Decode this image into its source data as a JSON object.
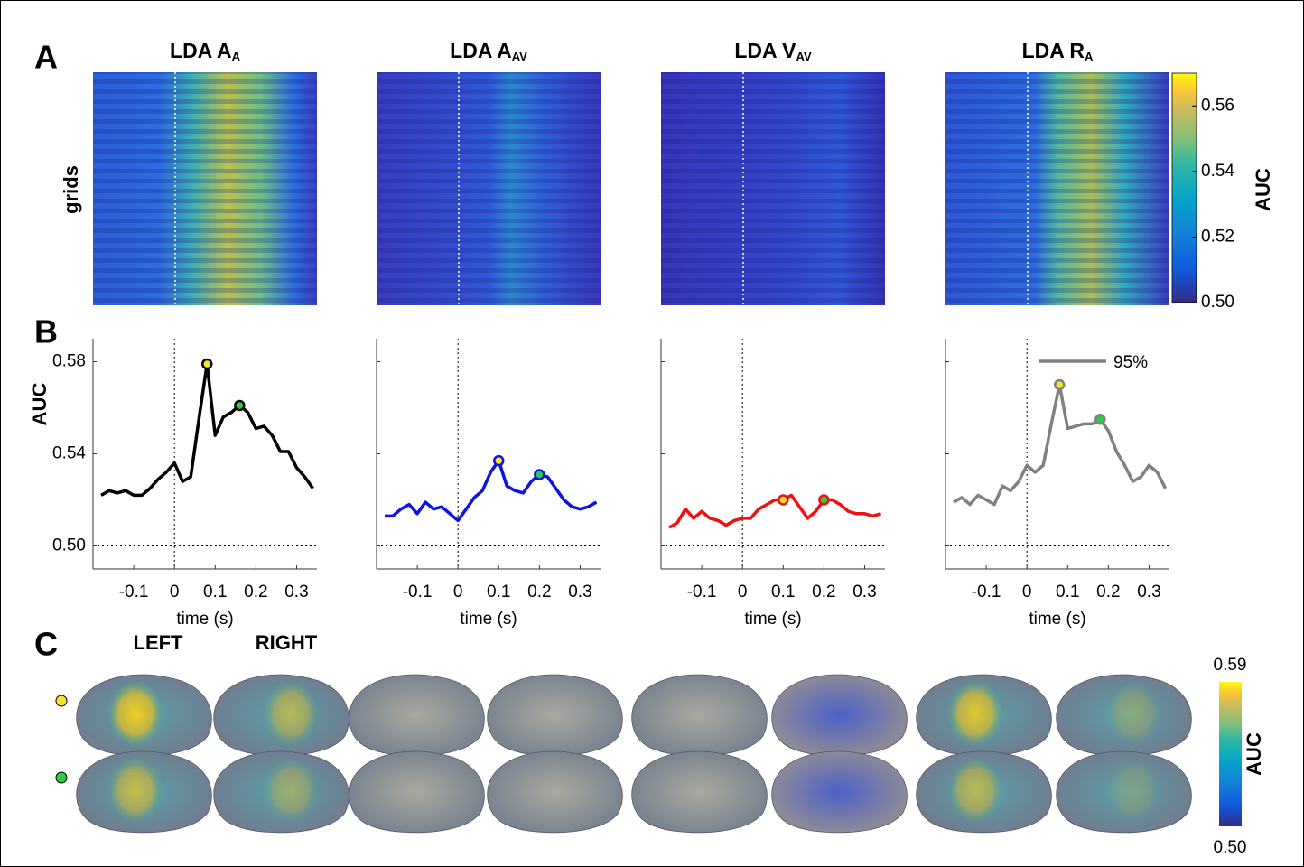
{
  "panel_a": {
    "label": "A",
    "ylabel": "grids",
    "titles": [
      {
        "main": "LDA A",
        "sub": "A"
      },
      {
        "main": "LDA A",
        "sub": "AV"
      },
      {
        "main": "LDA V",
        "sub": "AV"
      },
      {
        "main": "LDA R",
        "sub": "A"
      }
    ],
    "colorbar": {
      "label": "AUC",
      "lim": [
        0.5,
        0.57
      ],
      "ticks": [
        {
          "value": 0.5,
          "label": "0.50"
        },
        {
          "value": 0.52,
          "label": "0.52"
        },
        {
          "value": 0.54,
          "label": "0.54"
        },
        {
          "value": 0.56,
          "label": "0.56"
        }
      ]
    }
  },
  "panel_b_label": "B",
  "chart_data": [
    {
      "type": "line",
      "ylabel": "AUC",
      "xlabel": "time (s)",
      "xlim": [
        -0.2,
        0.35
      ],
      "ylim": [
        0.49,
        0.59
      ],
      "xticks": [
        -0.1,
        0,
        0.1,
        0.2,
        0.3
      ],
      "yticks": [
        {
          "value": 0.5,
          "label": "0.50"
        },
        0.54,
        0.58
      ],
      "ytick_labels": true,
      "vline": 0,
      "hline": 0.5,
      "x": [
        -0.18,
        -0.16,
        -0.14,
        -0.12,
        -0.1,
        -0.08,
        -0.06,
        -0.04,
        -0.02,
        0,
        0.02,
        0.04,
        0.06,
        0.08,
        0.1,
        0.12,
        0.14,
        0.16,
        0.18,
        0.2,
        0.22,
        0.24,
        0.26,
        0.28,
        0.3,
        0.32,
        0.34
      ],
      "series": [
        {
          "color": "#000000",
          "values": [
            0.522,
            0.524,
            0.523,
            0.524,
            0.522,
            0.522,
            0.525,
            0.529,
            0.532,
            0.536,
            0.528,
            0.53,
            0.555,
            0.579,
            0.548,
            0.556,
            0.558,
            0.561,
            0.558,
            0.551,
            0.552,
            0.548,
            0.541,
            0.541,
            0.534,
            0.53,
            0.525
          ]
        }
      ],
      "markers": [
        {
          "x": 0.08,
          "y": 0.579,
          "color": "#f2e52a"
        },
        {
          "x": 0.16,
          "y": 0.561,
          "color": "#2ecc40"
        }
      ]
    },
    {
      "type": "line",
      "xlabel": "time (s)",
      "xlim": [
        -0.2,
        0.35
      ],
      "ylim": [
        0.49,
        0.59
      ],
      "xticks": [
        -0.1,
        0,
        0.1,
        0.2,
        0.3
      ],
      "yticks": [
        {
          "value": 0.5,
          "label": "0.50"
        },
        0.54,
        0.58
      ],
      "ytick_labels": false,
      "vline": 0,
      "hline": 0.5,
      "x": [
        -0.18,
        -0.16,
        -0.14,
        -0.12,
        -0.1,
        -0.08,
        -0.06,
        -0.04,
        -0.02,
        0,
        0.02,
        0.04,
        0.06,
        0.08,
        0.1,
        0.12,
        0.14,
        0.16,
        0.18,
        0.2,
        0.22,
        0.24,
        0.26,
        0.28,
        0.3,
        0.32,
        0.34
      ],
      "series": [
        {
          "color": "#0a14e6",
          "values": [
            0.513,
            0.513,
            0.516,
            0.518,
            0.514,
            0.519,
            0.516,
            0.517,
            0.514,
            0.511,
            0.516,
            0.521,
            0.524,
            0.532,
            0.537,
            0.526,
            0.524,
            0.523,
            0.528,
            0.531,
            0.53,
            0.525,
            0.52,
            0.517,
            0.516,
            0.517,
            0.519
          ]
        }
      ],
      "markers": [
        {
          "x": 0.1,
          "y": 0.537,
          "color": "#f2e52a"
        },
        {
          "x": 0.2,
          "y": 0.531,
          "color": "#2ecc40"
        }
      ]
    },
    {
      "type": "line",
      "xlabel": "time (s)",
      "xlim": [
        -0.2,
        0.35
      ],
      "ylim": [
        0.49,
        0.59
      ],
      "xticks": [
        -0.1,
        0,
        0.1,
        0.2,
        0.3
      ],
      "yticks": [
        {
          "value": 0.5,
          "label": "0.50"
        },
        0.54,
        0.58
      ],
      "ytick_labels": false,
      "vline": 0,
      "hline": 0.5,
      "x": [
        -0.18,
        -0.16,
        -0.14,
        -0.12,
        -0.1,
        -0.08,
        -0.06,
        -0.04,
        -0.02,
        0,
        0.02,
        0.04,
        0.06,
        0.08,
        0.1,
        0.12,
        0.14,
        0.16,
        0.18,
        0.2,
        0.22,
        0.24,
        0.26,
        0.28,
        0.3,
        0.32,
        0.34
      ],
      "series": [
        {
          "color": "#ee1111",
          "values": [
            0.508,
            0.51,
            0.516,
            0.512,
            0.515,
            0.512,
            0.511,
            0.509,
            0.511,
            0.512,
            0.512,
            0.516,
            0.518,
            0.52,
            0.52,
            0.522,
            0.517,
            0.512,
            0.515,
            0.52,
            0.52,
            0.518,
            0.515,
            0.514,
            0.514,
            0.513,
            0.514
          ]
        }
      ],
      "markers": [
        {
          "x": 0.1,
          "y": 0.52,
          "color": "#f2e52a"
        },
        {
          "x": 0.2,
          "y": 0.52,
          "color": "#2ecc40"
        }
      ]
    },
    {
      "type": "line",
      "xlabel": "time (s)",
      "xlim": [
        -0.2,
        0.35
      ],
      "ylim": [
        0.49,
        0.59
      ],
      "xticks": [
        -0.1,
        0,
        0.1,
        0.2,
        0.3
      ],
      "yticks": [
        {
          "value": 0.5,
          "label": "0.50"
        },
        0.54,
        0.58
      ],
      "ytick_labels": false,
      "vline": 0,
      "hline": 0.5,
      "x": [
        -0.18,
        -0.16,
        -0.14,
        -0.12,
        -0.1,
        -0.08,
        -0.06,
        -0.04,
        -0.02,
        0,
        0.02,
        0.04,
        0.06,
        0.08,
        0.1,
        0.12,
        0.14,
        0.16,
        0.18,
        0.2,
        0.22,
        0.24,
        0.26,
        0.28,
        0.3,
        0.32,
        0.34
      ],
      "series": [
        {
          "name": "95%",
          "color": "#808080",
          "values": [
            0.519,
            0.521,
            0.518,
            0.522,
            0.52,
            0.518,
            0.526,
            0.524,
            0.528,
            0.535,
            0.532,
            0.535,
            0.553,
            0.57,
            0.551,
            0.552,
            0.553,
            0.553,
            0.555,
            0.55,
            0.541,
            0.535,
            0.528,
            0.53,
            0.535,
            0.532,
            0.525
          ]
        }
      ],
      "markers": [
        {
          "x": 0.08,
          "y": 0.57,
          "color": "#f2e52a"
        },
        {
          "x": 0.18,
          "y": 0.555,
          "color": "#2ecc40"
        }
      ],
      "legend": "upper right"
    }
  ],
  "panel_c": {
    "label": "C",
    "hemispheres": [
      "LEFT",
      "RIGHT"
    ],
    "colorbar": {
      "label": "AUC",
      "lim": [
        0.5,
        0.59
      ],
      "ticks": [
        {
          "value": 0.5,
          "label": "0.50"
        },
        0.59
      ]
    }
  }
}
